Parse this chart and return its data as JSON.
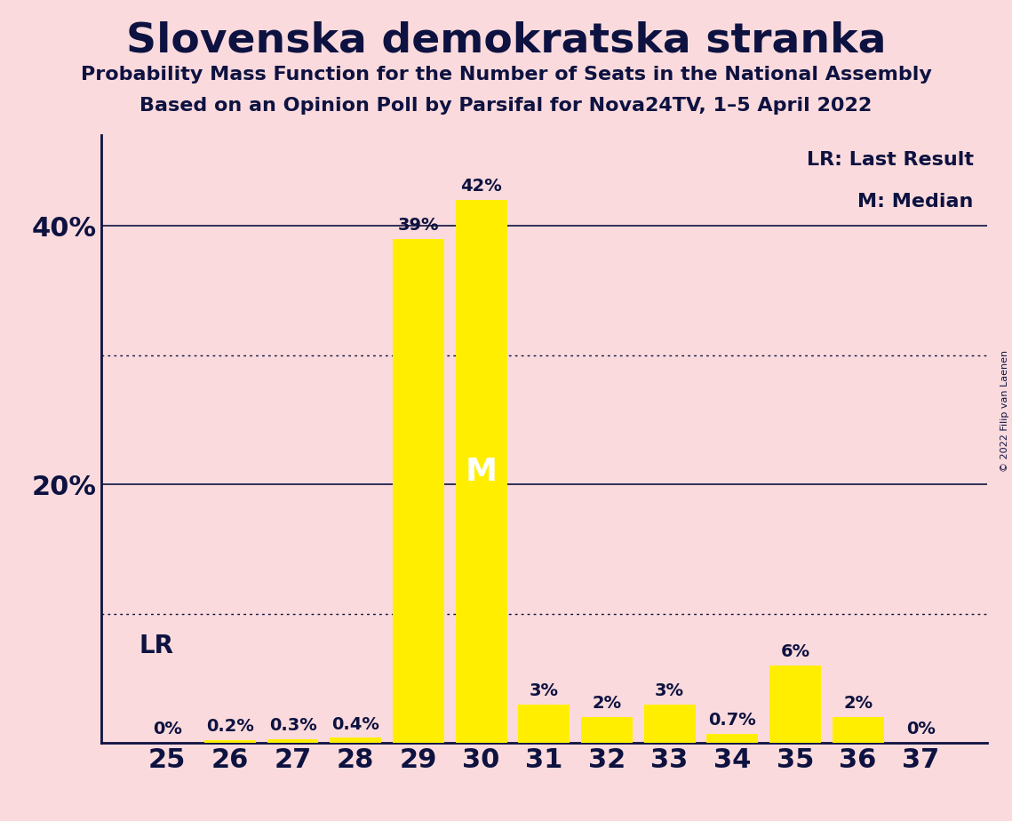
{
  "title": "Slovenska demokratska stranka",
  "subtitle1": "Probability Mass Function for the Number of Seats in the National Assembly",
  "subtitle2": "Based on an Opinion Poll by Parsifal for Nova24TV, 1–5 April 2022",
  "copyright": "© 2022 Filip van Laenen",
  "categories": [
    25,
    26,
    27,
    28,
    29,
    30,
    31,
    32,
    33,
    34,
    35,
    36,
    37
  ],
  "values": [
    0.0,
    0.2,
    0.3,
    0.4,
    39.0,
    42.0,
    3.0,
    2.0,
    3.0,
    0.7,
    6.0,
    2.0,
    0.0
  ],
  "bar_color": "#FFEE00",
  "background_color": "#FADADD",
  "text_color": "#0D1240",
  "median_bar": 30,
  "lr_label": "LR",
  "median_label": "M",
  "legend_lr": "LR: Last Result",
  "legend_m": "M: Median",
  "ylim": [
    0,
    47
  ],
  "bar_labels": [
    "0%",
    "0.2%",
    "0.3%",
    "0.4%",
    "39%",
    "42%",
    "3%",
    "2%",
    "3%",
    "0.7%",
    "6%",
    "2%",
    "0%"
  ],
  "solid_lines": [
    20,
    40
  ],
  "dotted_lines": [
    10,
    30
  ]
}
